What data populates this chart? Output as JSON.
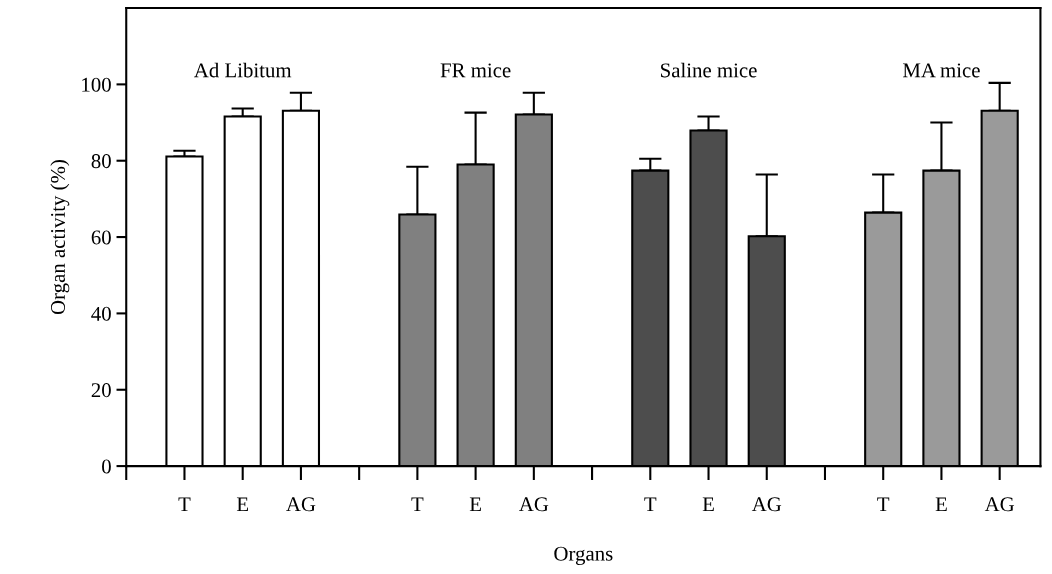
{
  "chart_data": {
    "type": "bar",
    "xlabel": "Organs",
    "ylabel": "Organ activity (%)",
    "categories": [
      "T",
      "E",
      "AG",
      null,
      "T",
      "E",
      "AG",
      null,
      "T",
      "E",
      "AG",
      null,
      "T",
      "E",
      "AG"
    ],
    "values": [
      81.1,
      91.6,
      93.1,
      null,
      65.9,
      79.0,
      92.1,
      null,
      77.4,
      87.9,
      60.2,
      null,
      66.4,
      77.4,
      93.1
    ],
    "errors": [
      [
        81.1,
        82.6
      ],
      [
        91.6,
        93.7
      ],
      [
        93.1,
        97.8
      ],
      null,
      [
        65.9,
        78.4
      ],
      [
        79.0,
        92.6
      ],
      [
        92.1,
        97.8
      ],
      null,
      [
        77.4,
        80.5
      ],
      [
        87.9,
        91.6
      ],
      [
        60.2,
        76.4
      ],
      null,
      [
        66.4,
        76.4
      ],
      [
        77.4,
        90.0
      ],
      [
        93.1,
        100.4
      ]
    ],
    "colors": [
      "#ffffff",
      "#ffffff",
      "#ffffff",
      null,
      "#808080",
      "#808080",
      "#808080",
      null,
      "#4d4d4d",
      "#4d4d4d",
      "#4d4d4d",
      null,
      "#9a9a9a",
      "#9a9a9a",
      "#9a9a9a"
    ],
    "annotations": [
      "Ad Libitum",
      "FR mice",
      "Saline mice",
      "MA mice"
    ],
    "ylim": [
      0,
      120
    ],
    "yticks": [
      0,
      20,
      40,
      60,
      80,
      100
    ],
    "grid": false,
    "legend": false
  }
}
